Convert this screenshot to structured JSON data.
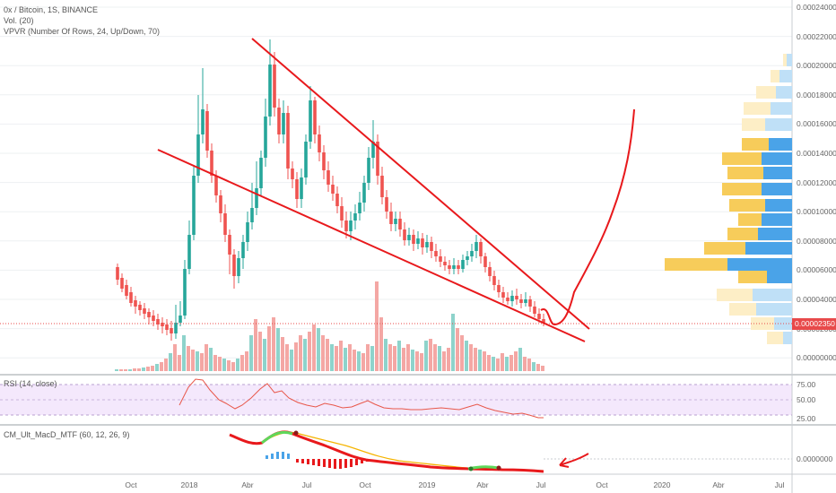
{
  "main": {
    "title": "0x / Bitcoin, 1S, BINANCE",
    "volume_label": "Vol. (20)",
    "vpvr_label": "VPVR (Number Of Rows, 24, Up/Down, 70)",
    "last_price": "0.00002350",
    "y_ticks": [
      "0.00024000",
      "0.00022000",
      "0.00020000",
      "0.00018000",
      "0.00016000",
      "0.00014000",
      "0.00012000",
      "0.00010000",
      "0.00008000",
      "0.00006000",
      "0.00004000",
      "0.00002000",
      "0.00000000"
    ]
  },
  "rsi": {
    "label": "RSI (14, close)",
    "y_ticks": [
      "75.00",
      "50.00",
      "25.00"
    ]
  },
  "macd": {
    "label": "CM_Ult_MacD_MTF (60, 12, 26, 9)",
    "y_ticks": [
      "0.0000000"
    ]
  },
  "x_axis": {
    "ticks": [
      "Oct",
      "2018",
      "Abr",
      "Jul",
      "Oct",
      "2019",
      "Abr",
      "Jul",
      "Oct",
      "2020",
      "Abr",
      "Jul"
    ]
  },
  "colors": {
    "up": "#26a69a",
    "down": "#ef5350",
    "drawing": "#e8191c",
    "rsi_bg": "#f3e6fb",
    "vpvr_up": "#4aa3e8",
    "vpvr_down": "#f7cc5a"
  }
}
